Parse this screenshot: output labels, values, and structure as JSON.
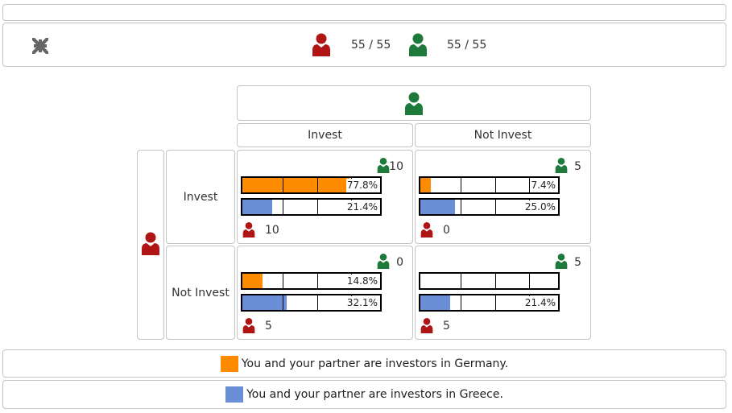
{
  "colors": {
    "germany": "#ff8c00",
    "greece": "#6b8fd6",
    "red_player": "#b01515",
    "green_player": "#1e7a3a"
  },
  "top_bar": {
    "collapse_icon": "collapse-arrows-icon",
    "red_score": "55 / 55",
    "green_score": "55 / 55"
  },
  "matrix": {
    "col_labels": [
      "Invest",
      "Not Invest"
    ],
    "row_labels": [
      "Invest",
      "Not Invest"
    ],
    "cells": [
      {
        "green": "10",
        "red": "10",
        "germany_value": 0.778,
        "germany_label": "77.8%",
        "greece_value": 0.214,
        "greece_label": "21.4%"
      },
      {
        "green": "5",
        "red": "0",
        "germany_value": 0.074,
        "germany_label": "7.4%",
        "greece_value": 0.25,
        "greece_label": "25.0%"
      },
      {
        "green": "0",
        "red": "5",
        "germany_value": 0.148,
        "germany_label": "14.8%",
        "greece_value": 0.321,
        "greece_label": "32.1%"
      },
      {
        "green": "5",
        "red": "5",
        "germany_value": 0.0,
        "germany_label": "",
        "greece_value": 0.214,
        "greece_label": "21.4%"
      }
    ]
  },
  "legend": {
    "germany": "You and your partner are investors in Germany.",
    "greece": "You and your partner are investors in Greece."
  }
}
